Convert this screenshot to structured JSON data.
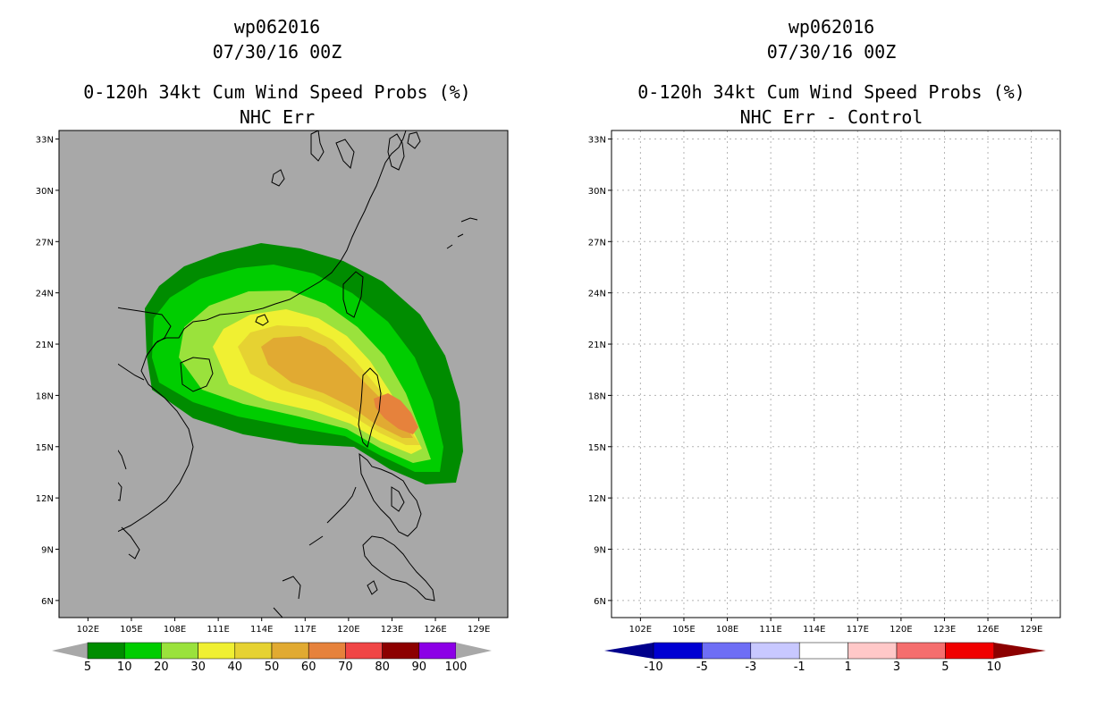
{
  "left_panel": {
    "storm_id": "wp062016",
    "datetime": "07/30/16 00Z",
    "product": "0-120h 34kt Cum Wind Speed Probs (%)",
    "subtitle": "NHC Err",
    "colorbar": {
      "labels": [
        "5",
        "10",
        "20",
        "30",
        "40",
        "50",
        "60",
        "70",
        "80",
        "90",
        "100"
      ],
      "colors": [
        "#008c00",
        "#00cd00",
        "#9ae23c",
        "#f0f032",
        "#e6d232",
        "#e1aa32",
        "#e6823c",
        "#f04646",
        "#8c0000",
        "#8c00e6"
      ],
      "extend_color": "#a8a8a8"
    },
    "map_background": "#a8a8a8"
  },
  "right_panel": {
    "storm_id": "wp062016",
    "datetime": "07/30/16 00Z",
    "product": "0-120h 34kt Cum Wind Speed Probs (%)",
    "subtitle": "NHC Err - Control",
    "colorbar": {
      "labels": [
        "-10",
        "-5",
        "-3",
        "-1",
        "1",
        "3",
        "5",
        "10"
      ],
      "colors": [
        "#0000d2",
        "#6e6ef5",
        "#c8c8ff",
        "#ffffff",
        "#ffc8c8",
        "#f56e6e",
        "#f00000"
      ],
      "low_color": "#00008c",
      "high_color": "#8c0000"
    },
    "map_background": "#ffffff"
  },
  "map": {
    "lat_labels": [
      "33N",
      "30N",
      "27N",
      "24N",
      "21N",
      "18N",
      "15N",
      "12N",
      "9N",
      "6N"
    ],
    "lon_labels": [
      "102E",
      "105E",
      "108E",
      "111E",
      "114E",
      "117E",
      "120E",
      "123E",
      "126E",
      "129E"
    ],
    "lat_range": [
      5,
      33.5
    ],
    "lon_range": [
      100,
      131
    ]
  }
}
